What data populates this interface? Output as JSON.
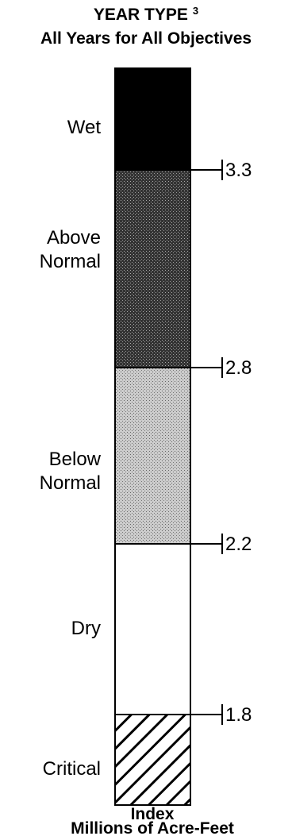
{
  "title": {
    "text": "YEAR TYPE",
    "superscript": "3",
    "subtitle": "All Years for All Objectives"
  },
  "segments": [
    {
      "lines": [
        "Wet"
      ]
    },
    {
      "lines": [
        "Above",
        "Normal"
      ]
    },
    {
      "lines": [
        "Below",
        "Normal"
      ]
    },
    {
      "lines": [
        "Dry"
      ]
    },
    {
      "lines": [
        "Critical"
      ]
    }
  ],
  "thresholds": [
    3.3,
    2.8,
    2.2,
    1.8
  ],
  "footer": [
    "Index",
    "Millions of Acre-Feet"
  ]
}
